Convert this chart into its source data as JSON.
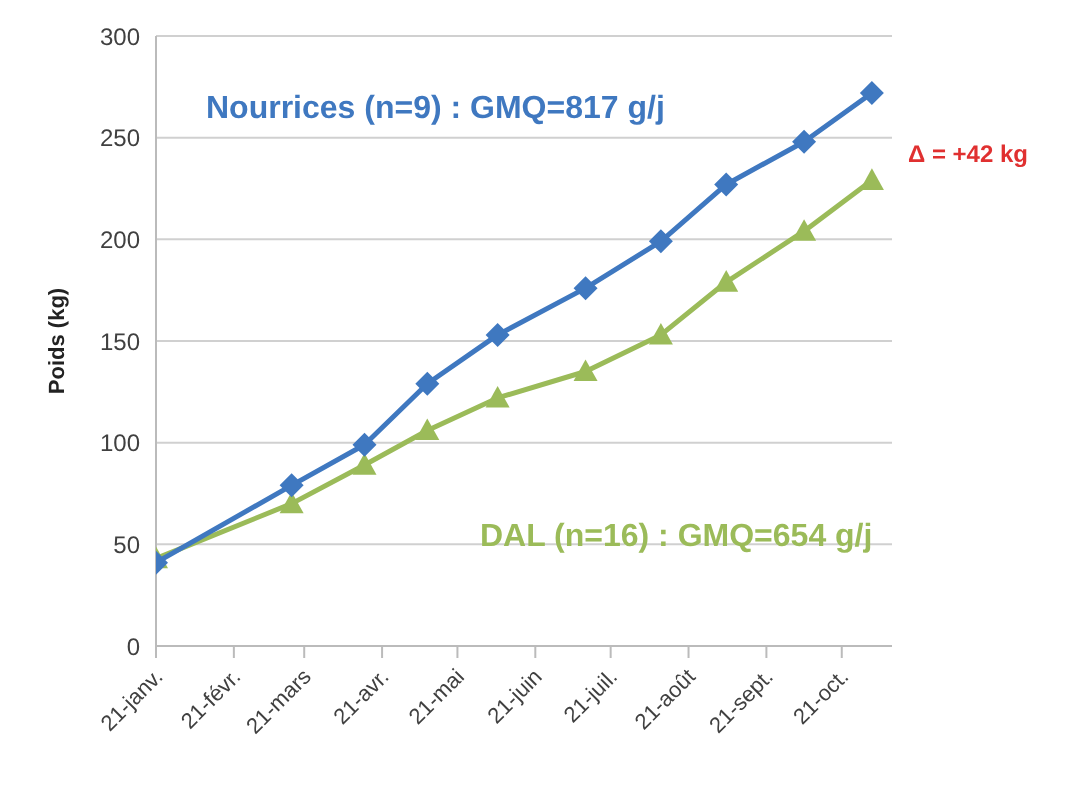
{
  "chart_data": {
    "type": "line",
    "ylabel": "Poids (kg)",
    "xlim": [
      "--01-21",
      "--11-10"
    ],
    "xticks": [
      {
        "value": "--01-21",
        "label": "21-janv."
      },
      {
        "value": "--02-21",
        "label": "21-févr."
      },
      {
        "value": "--03-21",
        "label": "21-mars"
      },
      {
        "value": "--04-21",
        "label": "21-avr."
      },
      {
        "value": "--05-21",
        "label": "21-mai"
      },
      {
        "value": "--06-21",
        "label": "21-juin"
      },
      {
        "value": "--07-21",
        "label": "21-juil."
      },
      {
        "value": "--08-21",
        "label": "21-août"
      },
      {
        "value": "--09-21",
        "label": "21-sept."
      },
      {
        "value": "--10-21",
        "label": "21-oct."
      }
    ],
    "ylim": [
      0,
      300
    ],
    "yticks": [
      0,
      50,
      100,
      150,
      200,
      250,
      300
    ],
    "grid": "y",
    "x": [
      "--01-21",
      "--03-16",
      "--04-14",
      "--05-09",
      "--06-06",
      "--07-11",
      "--08-10",
      "--09-05",
      "--10-06",
      "--11-02"
    ],
    "series": [
      {
        "name": "Nourrices (n=9) : GMQ=817 g/j",
        "color": "#3f78c0",
        "marker": "diamond",
        "values": [
          41,
          79,
          99,
          129,
          153,
          176,
          199,
          227,
          248,
          272
        ]
      },
      {
        "name": "DAL (n=16) : GMQ=654 g/j",
        "color": "#9bbb59",
        "marker": "triangle",
        "values": [
          43,
          70,
          89,
          106,
          122,
          135,
          153,
          179,
          204,
          229
        ]
      }
    ],
    "annotations": [
      "Δ = +42 kg"
    ]
  }
}
